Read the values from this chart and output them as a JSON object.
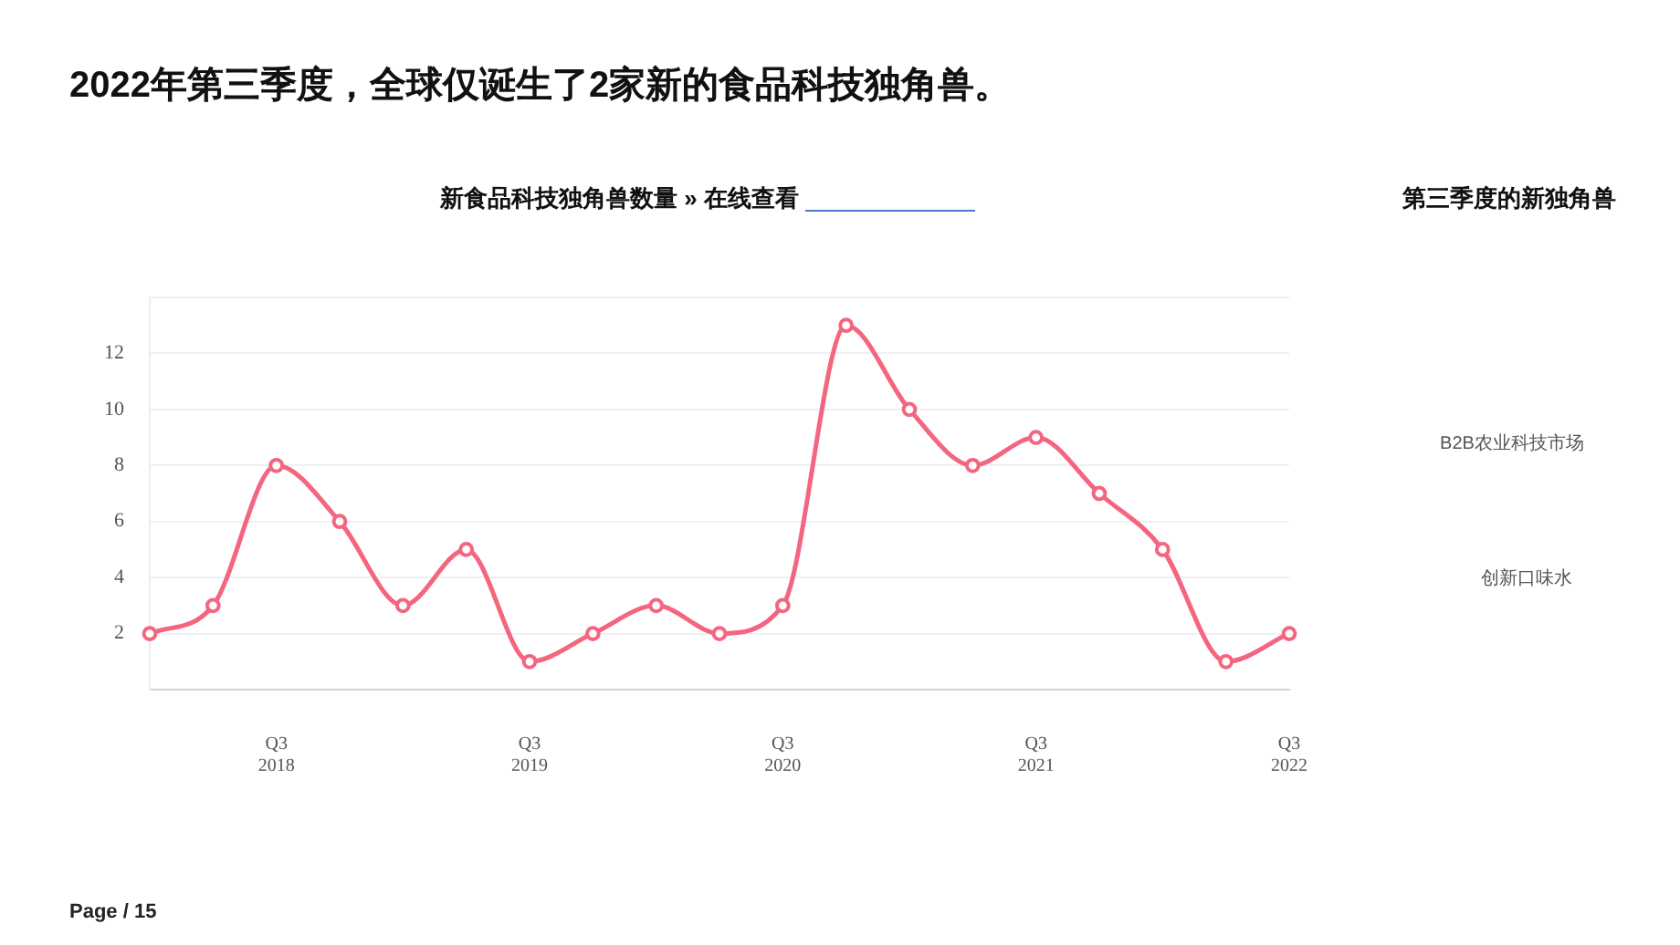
{
  "chart_data": {
    "type": "line",
    "title": "2022年第三季度，全球仅诞生了2家新的食品科技独角兽。",
    "subtitle": "新食品科技独角兽数量 » 在线查看",
    "categories": [
      null,
      null,
      "Q3 2018",
      null,
      null,
      null,
      "Q3 2019",
      null,
      null,
      null,
      "Q3 2020",
      null,
      null,
      null,
      "Q3 2021",
      null,
      null,
      null,
      "Q3 2022"
    ],
    "values": [
      2,
      3,
      8,
      6,
      3,
      5,
      1,
      2,
      3,
      2,
      3,
      13,
      10,
      8,
      9,
      7,
      5,
      1,
      2
    ],
    "color": "#f4667f",
    "ylim": [
      0,
      14
    ],
    "yticks": [
      {
        "value": 0,
        "label": null
      },
      2,
      4,
      6,
      8,
      10,
      12,
      {
        "value": 14,
        "label": null
      }
    ],
    "grid": "y",
    "marker": "circle",
    "line_style": "solid",
    "annotations": [
      "第三季度的新独角兽",
      "B2B农业科技市场",
      "创新口味水",
      "Page / 15"
    ]
  }
}
